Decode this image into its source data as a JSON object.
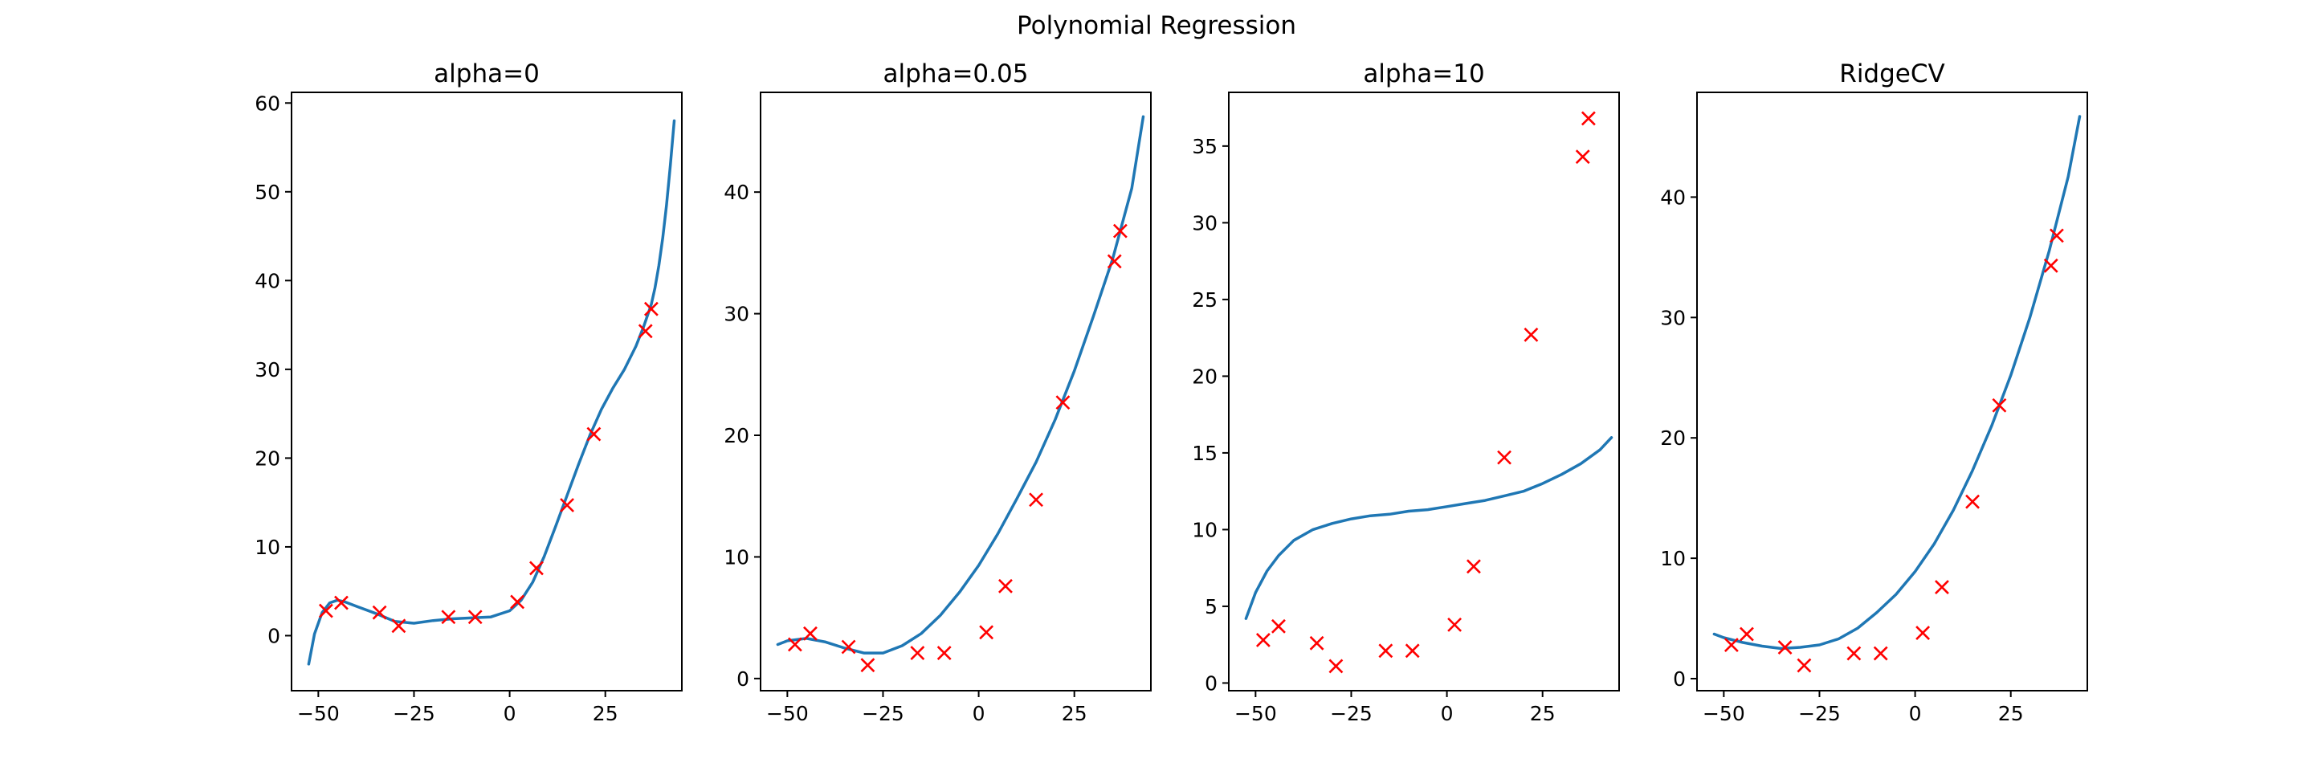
{
  "figure": {
    "title": "Polynomial Regression"
  },
  "chart_data": [
    {
      "type": "line",
      "title": "alpha=0",
      "xlabel": "",
      "ylabel": "",
      "xlim": [
        -57,
        45
      ],
      "ylim": [
        -6.2,
        61.2
      ],
      "xticks": [
        -50,
        -25,
        0,
        25
      ],
      "yticks": [
        0,
        10,
        20,
        30,
        40,
        50,
        60
      ],
      "series": [
        {
          "kind": "line",
          "color": "#1f77b4",
          "x": [
            -52.5,
            -51,
            -49,
            -47,
            -45,
            -43,
            -40,
            -35,
            -30,
            -25,
            -20,
            -15,
            -10,
            -5,
            0,
            3,
            6,
            9,
            12,
            15,
            18,
            21,
            24,
            27,
            30,
            33,
            35,
            37,
            38,
            39,
            40,
            41,
            42,
            43
          ],
          "y": [
            -3.2,
            0.2,
            2.6,
            3.7,
            4.0,
            3.8,
            3.3,
            2.5,
            1.6,
            1.4,
            1.7,
            1.9,
            2.0,
            2.1,
            2.8,
            4.0,
            6.0,
            8.9,
            12.3,
            15.8,
            19.3,
            22.6,
            25.5,
            27.9,
            30.0,
            32.6,
            34.8,
            37.3,
            39.2,
            41.7,
            44.8,
            48.5,
            53.0,
            58.0
          ]
        },
        {
          "kind": "scatter",
          "marker": "x",
          "color": "#ff0000",
          "x": [
            -48,
            -44,
            -34,
            -29,
            -16,
            -9,
            2,
            7,
            15,
            22,
            35.5,
            37
          ],
          "y": [
            2.8,
            3.7,
            2.6,
            1.1,
            2.1,
            2.1,
            3.8,
            7.6,
            14.7,
            22.7,
            34.3,
            36.8
          ]
        }
      ]
    },
    {
      "type": "line",
      "title": "alpha=0.05",
      "xlabel": "",
      "ylabel": "",
      "xlim": [
        -57,
        45
      ],
      "ylim": [
        -1.0,
        48.2
      ],
      "xticks": [
        -50,
        -25,
        0,
        25
      ],
      "yticks": [
        0,
        10,
        20,
        30,
        40
      ],
      "series": [
        {
          "kind": "line",
          "color": "#1f77b4",
          "x": [
            -52.5,
            -50,
            -45,
            -40,
            -35,
            -30,
            -25,
            -20,
            -15,
            -10,
            -5,
            0,
            5,
            10,
            15,
            20,
            25,
            30,
            35,
            40,
            43
          ],
          "y": [
            2.8,
            3.1,
            3.3,
            3.0,
            2.5,
            2.1,
            2.1,
            2.7,
            3.7,
            5.2,
            7.1,
            9.3,
            11.9,
            14.8,
            17.8,
            21.3,
            25.3,
            29.8,
            34.5,
            40.3,
            46.2
          ]
        },
        {
          "kind": "scatter",
          "marker": "x",
          "color": "#ff0000",
          "x": [
            -48,
            -44,
            -34,
            -29,
            -16,
            -9,
            2,
            7,
            15,
            22,
            35.5,
            37
          ],
          "y": [
            2.8,
            3.7,
            2.6,
            1.1,
            2.1,
            2.1,
            3.8,
            7.6,
            14.7,
            22.7,
            34.3,
            36.8
          ]
        }
      ]
    },
    {
      "type": "line",
      "title": "alpha=10",
      "xlabel": "",
      "ylabel": "",
      "xlim": [
        -57,
        45
      ],
      "ylim": [
        -0.5,
        38.5
      ],
      "xticks": [
        -50,
        -25,
        0,
        25
      ],
      "yticks": [
        0,
        5,
        10,
        15,
        20,
        25,
        30,
        35
      ],
      "series": [
        {
          "kind": "line",
          "color": "#1f77b4",
          "x": [
            -52.5,
            -50,
            -47,
            -44,
            -40,
            -35,
            -30,
            -25,
            -20,
            -15,
            -10,
            -5,
            0,
            5,
            10,
            15,
            20,
            25,
            30,
            35,
            40,
            43
          ],
          "y": [
            4.2,
            5.9,
            7.3,
            8.3,
            9.3,
            10.0,
            10.4,
            10.7,
            10.9,
            11.0,
            11.2,
            11.3,
            11.5,
            11.7,
            11.9,
            12.2,
            12.5,
            13.0,
            13.6,
            14.3,
            15.2,
            16.0
          ]
        },
        {
          "kind": "scatter",
          "marker": "x",
          "color": "#ff0000",
          "x": [
            -48,
            -44,
            -34,
            -29,
            -16,
            -9,
            2,
            7,
            15,
            22,
            35.5,
            37
          ],
          "y": [
            2.8,
            3.7,
            2.6,
            1.1,
            2.1,
            2.1,
            3.8,
            7.6,
            14.7,
            22.7,
            34.3,
            36.8
          ]
        }
      ]
    },
    {
      "type": "line",
      "title": "RidgeCV",
      "xlabel": "",
      "ylabel": "",
      "xlim": [
        -57,
        45
      ],
      "ylim": [
        -1.0,
        48.7
      ],
      "xticks": [
        -50,
        -25,
        0,
        25
      ],
      "yticks": [
        0,
        10,
        20,
        30,
        40
      ],
      "series": [
        {
          "kind": "line",
          "color": "#1f77b4",
          "x": [
            -52.5,
            -50,
            -45,
            -40,
            -35,
            -30,
            -25,
            -20,
            -15,
            -10,
            -5,
            0,
            5,
            10,
            15,
            20,
            25,
            30,
            35,
            40,
            43
          ],
          "y": [
            3.7,
            3.4,
            3.0,
            2.7,
            2.5,
            2.6,
            2.8,
            3.3,
            4.2,
            5.5,
            7.0,
            8.9,
            11.2,
            14.0,
            17.3,
            21.0,
            25.2,
            30.0,
            35.5,
            41.7,
            46.7
          ]
        },
        {
          "kind": "scatter",
          "marker": "x",
          "color": "#ff0000",
          "x": [
            -48,
            -44,
            -34,
            -29,
            -16,
            -9,
            2,
            7,
            15,
            22,
            35.5,
            37
          ],
          "y": [
            2.8,
            3.7,
            2.6,
            1.1,
            2.1,
            2.1,
            3.8,
            7.6,
            14.7,
            22.7,
            34.3,
            36.8
          ]
        }
      ]
    }
  ]
}
